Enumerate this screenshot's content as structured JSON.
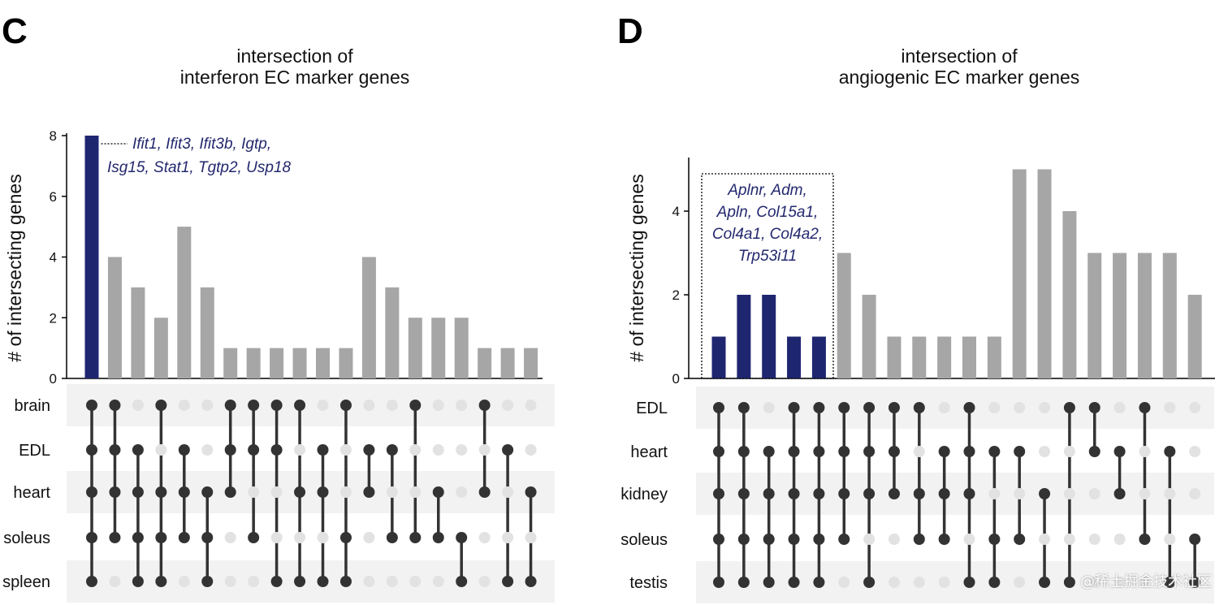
{
  "colors": {
    "highlight": "#1f2670",
    "bar": "#a6a6a6",
    "dot_on": "#333333",
    "dot_off": "#e2e2e2",
    "band": "#f2f2f2",
    "annotation": "#23286e"
  },
  "watermark": "@稀土掘金技术社区",
  "chart_data": [
    {
      "panel": "C",
      "type": "upset",
      "title": [
        "intersection of",
        "interferon EC marker genes"
      ],
      "ylabel": "# of intersecting genes",
      "ylim": [
        0,
        8
      ],
      "yticks": [
        0,
        2,
        4,
        6,
        8
      ],
      "sets": [
        "brain",
        "EDL",
        "heart",
        "soleus",
        "spleen"
      ],
      "values": [
        8,
        4,
        3,
        2,
        5,
        3,
        1,
        1,
        1,
        1,
        1,
        1,
        4,
        3,
        2,
        2,
        2,
        1,
        1,
        1
      ],
      "highlight": [
        0
      ],
      "memberships": [
        [
          0,
          1,
          2,
          3,
          4
        ],
        [
          0,
          1,
          2,
          3
        ],
        [
          1,
          2,
          3,
          4
        ],
        [
          0,
          2,
          3,
          4
        ],
        [
          1,
          2,
          3
        ],
        [
          2,
          3,
          4
        ],
        [
          0,
          1,
          2
        ],
        [
          0,
          1,
          3
        ],
        [
          0,
          1,
          4
        ],
        [
          0,
          2,
          4
        ],
        [
          1,
          2,
          4
        ],
        [
          0,
          3,
          4
        ],
        [
          1,
          2
        ],
        [
          1,
          3
        ],
        [
          0,
          3
        ],
        [
          2,
          3
        ],
        [
          3,
          4
        ],
        [
          0,
          2
        ],
        [
          1,
          4
        ],
        [
          2,
          4
        ]
      ],
      "annotation": [
        "Ifit1, Ifit3, Ifit3b, Igtp,",
        "Isg15, Stat1, Tgtp2, Usp18"
      ]
    },
    {
      "panel": "D",
      "type": "upset",
      "title": [
        "intersection of",
        "angiogenic EC marker genes"
      ],
      "ylabel": "# of intersecting genes",
      "ylim": [
        0,
        5.3
      ],
      "yticks": [
        0,
        2,
        4
      ],
      "sets": [
        "EDL",
        "heart",
        "kidney",
        "soleus",
        "testis"
      ],
      "values": [
        1,
        2,
        2,
        1,
        1,
        3,
        2,
        1,
        1,
        1,
        1,
        1,
        5,
        5,
        4,
        3,
        3,
        3,
        3,
        2
      ],
      "highlight": [
        0,
        1,
        2,
        3,
        4
      ],
      "memberships": [
        [
          0,
          1,
          2,
          3,
          4
        ],
        [
          0,
          1,
          2,
          3,
          4
        ],
        [
          1,
          2,
          3,
          4
        ],
        [
          0,
          1,
          2,
          3,
          4
        ],
        [
          0,
          1,
          2,
          3,
          4
        ],
        [
          0,
          1,
          2,
          3
        ],
        [
          0,
          1,
          2,
          4
        ],
        [
          0,
          1,
          2
        ],
        [
          0,
          2,
          3
        ],
        [
          1,
          2,
          3
        ],
        [
          0,
          1,
          2,
          4
        ],
        [
          1,
          3,
          4
        ],
        [
          1,
          3
        ],
        [
          2,
          4
        ],
        [
          0,
          4
        ],
        [
          0,
          1
        ],
        [
          1,
          2
        ],
        [
          0,
          3
        ],
        [
          1,
          4
        ],
        [
          3,
          4
        ]
      ],
      "annotation": [
        "Aplnr, Adm,",
        "Apln, Col15a1,",
        "Col4a1, Col4a2,",
        "Trp53i11"
      ]
    }
  ]
}
